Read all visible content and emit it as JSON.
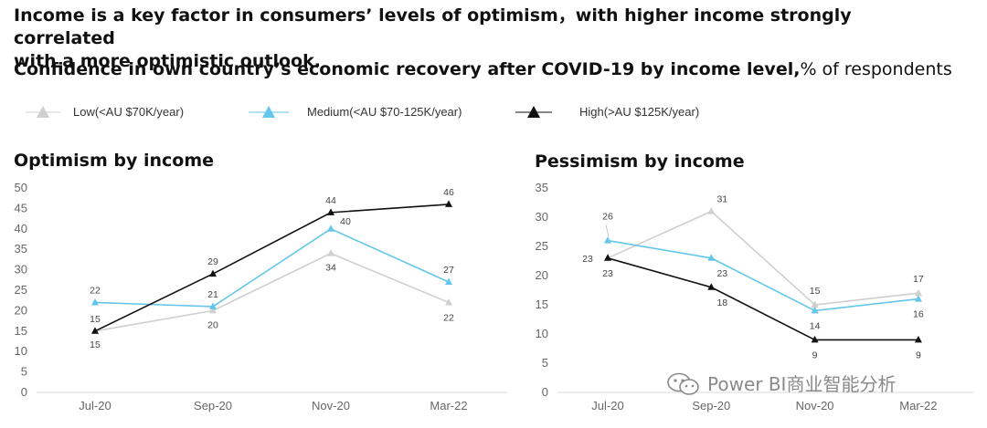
{
  "headline": {
    "line1": "Income is a key factor in consumers’ levels of optimism，with higher income strongly correlated",
    "line2": "with a more optimistic outlook."
  },
  "subtitle": {
    "bold": "Confidence in own country’s economic recovery after COVID-19 by income level,",
    "regular": "% of respondents"
  },
  "legend": [
    {
      "label": "Low(<AU $70K/year)",
      "color": "#cfcfcf"
    },
    {
      "label": "Medium(<AU $70-125K/year)",
      "color": "#63c6ea"
    },
    {
      "label": "High(>AU $125K/year)",
      "color": "#111111"
    }
  ],
  "watermark": {
    "text": "Power BI商业智能分析",
    "icon": "wechat-icon"
  },
  "chart_data": [
    {
      "type": "line",
      "title": "Optimism by income",
      "categories": [
        "Jul-20",
        "Sep-20",
        "Nov-20",
        "Mar-22"
      ],
      "ylim": [
        0,
        50
      ],
      "yticks": [
        "0",
        "5",
        "10",
        "15",
        "20",
        "25",
        "30",
        "35",
        "40",
        "45",
        "50"
      ],
      "grid": false,
      "legend": "top",
      "series": [
        {
          "name": "Low(<AU $70K/year)",
          "color": "#cfcfcf",
          "values": [
            15,
            20,
            34,
            22
          ],
          "labels": [
            "15",
            "20",
            "34",
            "22"
          ]
        },
        {
          "name": "Medium(<AU $70-125K/year)",
          "color": "#63c6ea",
          "values": [
            22,
            21,
            40,
            27
          ],
          "labels": [
            "22",
            "21",
            "40",
            "27"
          ]
        },
        {
          "name": "High(>AU $125K/year)",
          "color": "#111111",
          "values": [
            15,
            29,
            44,
            46
          ],
          "labels": [
            "15",
            "29",
            "44",
            "46"
          ]
        }
      ]
    },
    {
      "type": "line",
      "title": "Pessimism by income",
      "categories": [
        "Jul-20",
        "Sep-20",
        "Nov-20",
        "Mar-22"
      ],
      "ylim": [
        0,
        35
      ],
      "yticks": [
        "0",
        "5",
        "10",
        "15",
        "20",
        "25",
        "30",
        "35"
      ],
      "grid": false,
      "legend": "top",
      "series": [
        {
          "name": "Low(<AU $70K/year)",
          "color": "#cfcfcf",
          "values": [
            23,
            31,
            15,
            17
          ],
          "labels": [
            "23",
            "31",
            "15",
            "17"
          ]
        },
        {
          "name": "Medium(<AU $70-125K/year)",
          "color": "#63c6ea",
          "values": [
            26,
            23,
            14,
            16
          ],
          "labels": [
            "26",
            "23",
            "14",
            "16"
          ]
        },
        {
          "name": "High(>AU $125K/year)",
          "color": "#111111",
          "values": [
            23,
            18,
            9,
            9
          ],
          "labels": [
            "23",
            "18",
            "9",
            "9"
          ]
        }
      ]
    }
  ]
}
